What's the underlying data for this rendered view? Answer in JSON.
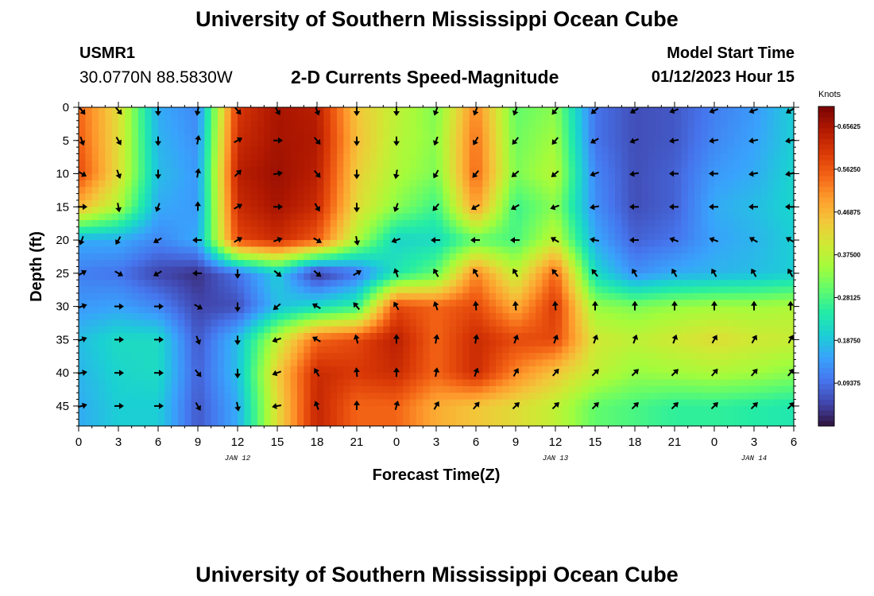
{
  "header": {
    "title": "University of Southern Mississippi Ocean Cube",
    "station_id": "USMR1",
    "coordinates": "30.0770N  88.5830W",
    "plot_title": "2-D Currents Speed-Magnitude",
    "start_label": "Model Start Time",
    "start_value": "01/12/2023 Hour 15"
  },
  "next_panel_title": "University of Southern Mississippi Ocean Cube",
  "chart_data": {
    "type": "heatmap",
    "title": "2-D Currents Speed-Magnitude",
    "xlabel": "Forecast Time(Z)",
    "ylabel": "Depth (ft)",
    "x_ticks": [
      "0",
      "3",
      "6",
      "9",
      "12",
      "15",
      "18",
      "21",
      "0",
      "3",
      "6",
      "9",
      "12",
      "15",
      "18",
      "21",
      "0",
      "3",
      "6"
    ],
    "date_labels": [
      {
        "label": "JAN 12",
        "at_tick": 4
      },
      {
        "label": "JAN 13",
        "at_tick": 12
      },
      {
        "label": "JAN 14",
        "at_tick": 17
      }
    ],
    "y_ticks": [
      "0",
      "5",
      "10",
      "15",
      "20",
      "25",
      "30",
      "35",
      "40",
      "45"
    ],
    "y_range": [
      0,
      48
    ],
    "x_range": [
      0,
      54
    ],
    "colorbar": {
      "units": "Knots",
      "ticks": [
        "0.65625",
        "0.56250",
        "0.46875",
        "0.37500",
        "0.28125",
        "0.18750",
        "0.09375"
      ],
      "range": [
        0,
        0.7
      ],
      "colors": [
        "#30123b",
        "#4145ab",
        "#4675ed",
        "#39a2fc",
        "#1bcfd4",
        "#24eca6",
        "#61fc6c",
        "#a4fc3b",
        "#d1e834",
        "#f3c63a",
        "#fe9b2d",
        "#f36315",
        "#d93806",
        "#b11901",
        "#7a0403"
      ]
    },
    "depths_ft": [
      0,
      5,
      10,
      15,
      20,
      25,
      30,
      35,
      40,
      45
    ],
    "hours": [
      0,
      3,
      6,
      9,
      12,
      15,
      18,
      21,
      24,
      27,
      30,
      33,
      36,
      39,
      42,
      45,
      48,
      51,
      54
    ],
    "speed_knots": [
      [
        0.55,
        0.42,
        0.16,
        0.12,
        0.6,
        0.66,
        0.64,
        0.45,
        0.38,
        0.32,
        0.52,
        0.3,
        0.33,
        0.1,
        0.06,
        0.07,
        0.11,
        0.14,
        0.2
      ],
      [
        0.56,
        0.42,
        0.17,
        0.13,
        0.62,
        0.66,
        0.65,
        0.46,
        0.37,
        0.33,
        0.54,
        0.31,
        0.35,
        0.1,
        0.06,
        0.07,
        0.12,
        0.15,
        0.2
      ],
      [
        0.58,
        0.42,
        0.18,
        0.14,
        0.64,
        0.67,
        0.64,
        0.44,
        0.36,
        0.32,
        0.55,
        0.32,
        0.37,
        0.12,
        0.06,
        0.08,
        0.14,
        0.16,
        0.21
      ],
      [
        0.47,
        0.36,
        0.16,
        0.14,
        0.62,
        0.66,
        0.62,
        0.42,
        0.33,
        0.27,
        0.5,
        0.27,
        0.33,
        0.13,
        0.06,
        0.08,
        0.16,
        0.18,
        0.21
      ],
      [
        0.16,
        0.16,
        0.12,
        0.16,
        0.58,
        0.62,
        0.56,
        0.36,
        0.21,
        0.22,
        0.3,
        0.28,
        0.38,
        0.16,
        0.08,
        0.1,
        0.15,
        0.17,
        0.2
      ],
      [
        0.11,
        0.1,
        0.05,
        0.03,
        0.1,
        0.2,
        0.03,
        0.1,
        0.24,
        0.3,
        0.52,
        0.38,
        0.55,
        0.22,
        0.13,
        0.16,
        0.17,
        0.18,
        0.2
      ],
      [
        0.14,
        0.15,
        0.12,
        0.05,
        0.06,
        0.18,
        0.22,
        0.26,
        0.58,
        0.55,
        0.58,
        0.48,
        0.6,
        0.34,
        0.32,
        0.34,
        0.35,
        0.35,
        0.36
      ],
      [
        0.18,
        0.22,
        0.22,
        0.07,
        0.18,
        0.38,
        0.55,
        0.58,
        0.64,
        0.55,
        0.62,
        0.58,
        0.58,
        0.4,
        0.38,
        0.4,
        0.42,
        0.4,
        0.39
      ],
      [
        0.17,
        0.21,
        0.22,
        0.08,
        0.18,
        0.44,
        0.62,
        0.6,
        0.62,
        0.55,
        0.62,
        0.52,
        0.45,
        0.38,
        0.34,
        0.35,
        0.36,
        0.35,
        0.33
      ],
      [
        0.16,
        0.2,
        0.2,
        0.07,
        0.16,
        0.42,
        0.63,
        0.55,
        0.55,
        0.48,
        0.45,
        0.42,
        0.38,
        0.3,
        0.28,
        0.26,
        0.26,
        0.25,
        0.24
      ]
    ],
    "direction_deg": [
      [
        140,
        140,
        180,
        190,
        140,
        150,
        160,
        180,
        180,
        200,
        200,
        200,
        220,
        230,
        240,
        250,
        250,
        250,
        240
      ],
      [
        160,
        150,
        180,
        10,
        60,
        90,
        140,
        180,
        180,
        200,
        210,
        220,
        220,
        240,
        250,
        260,
        260,
        260,
        260
      ],
      [
        120,
        160,
        180,
        10,
        45,
        80,
        140,
        180,
        190,
        210,
        220,
        230,
        230,
        250,
        260,
        270,
        270,
        260,
        260
      ],
      [
        90,
        170,
        200,
        360,
        60,
        90,
        150,
        180,
        200,
        220,
        240,
        240,
        250,
        260,
        270,
        270,
        270,
        270,
        270
      ],
      [
        200,
        210,
        240,
        270,
        60,
        70,
        120,
        170,
        250,
        270,
        270,
        270,
        300,
        280,
        270,
        290,
        290,
        300,
        300
      ],
      [
        60,
        120,
        240,
        270,
        180,
        130,
        130,
        60,
        340,
        330,
        330,
        330,
        320,
        320,
        330,
        330,
        330,
        330,
        330
      ],
      [
        70,
        90,
        90,
        120,
        180,
        230,
        300,
        320,
        330,
        340,
        355,
        355,
        355,
        0,
        0,
        0,
        0,
        0,
        0
      ],
      [
        70,
        90,
        90,
        160,
        180,
        250,
        300,
        345,
        0,
        10,
        10,
        20,
        20,
        20,
        20,
        20,
        30,
        30,
        30
      ],
      [
        80,
        90,
        90,
        140,
        180,
        250,
        330,
        355,
        0,
        10,
        20,
        30,
        40,
        45,
        45,
        45,
        40,
        40,
        40
      ],
      [
        75,
        90,
        90,
        150,
        170,
        260,
        340,
        0,
        15,
        30,
        40,
        45,
        45,
        45,
        45,
        45,
        45,
        45,
        45
      ]
    ]
  }
}
